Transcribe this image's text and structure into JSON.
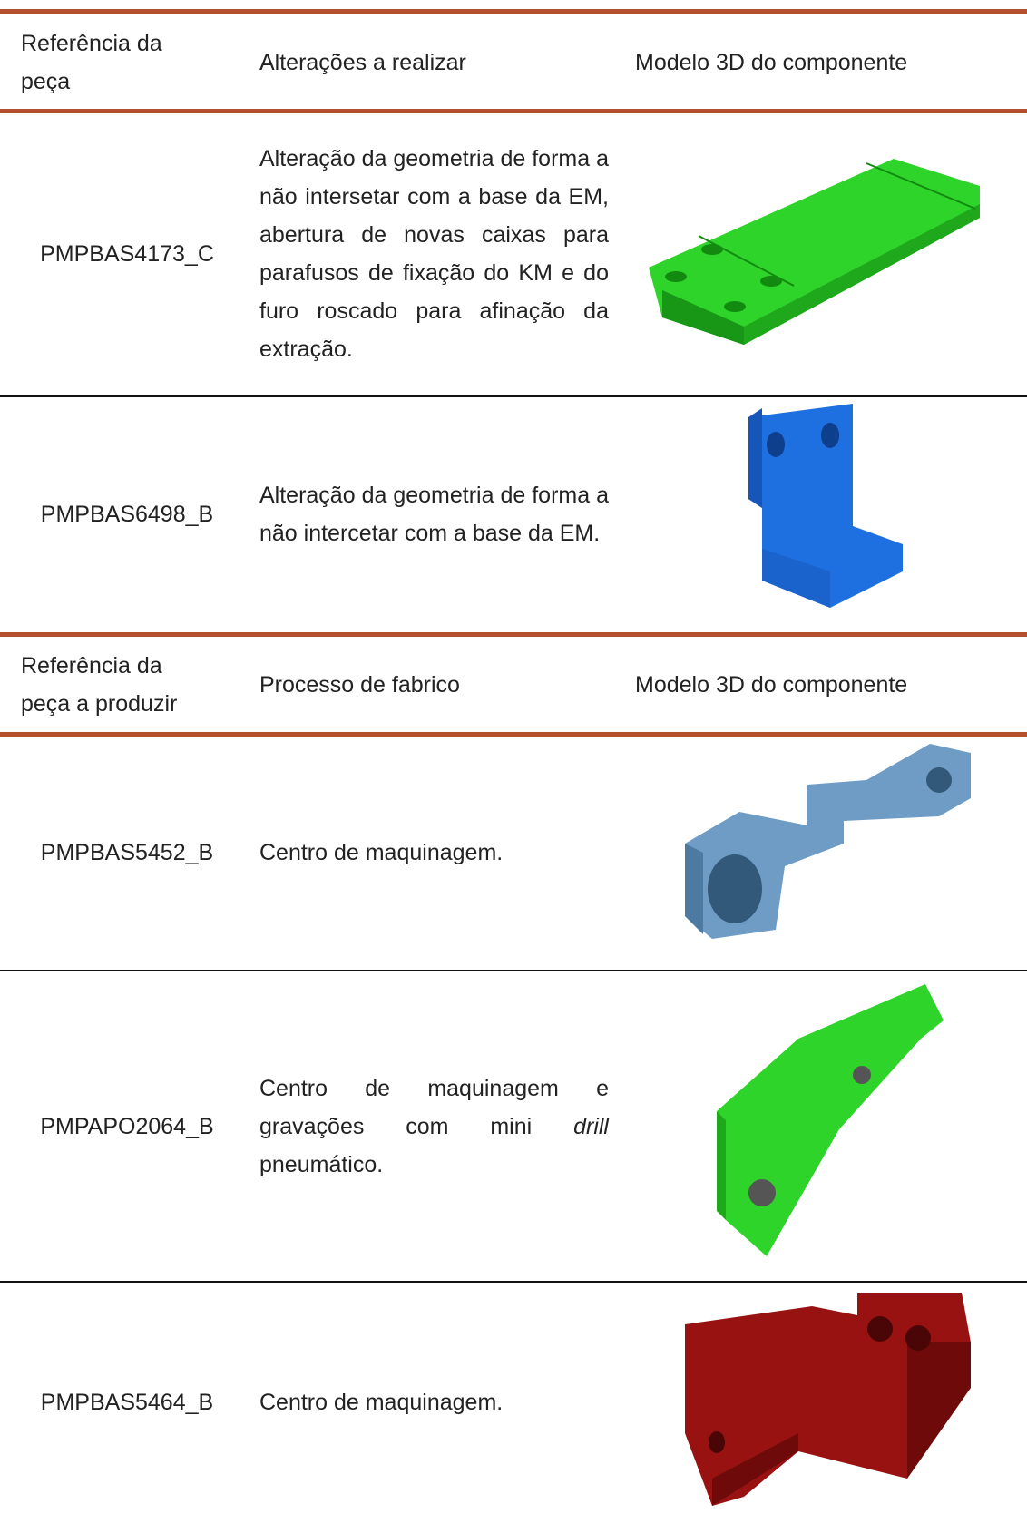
{
  "tables": [
    {
      "header": [
        "Referência da peça",
        "Alterações a realizar",
        "Modelo 3D do componente"
      ],
      "rows": [
        {
          "reference": "PMPBAS4173_C",
          "description": "Alteração da geometria de forma a não intersetar com a base da EM, abertura de novas caixas para parafusos de fixação do KM e do furo roscado para afinação da extração."
        },
        {
          "reference": "PMPBAS6498_B",
          "description": "Alteração da geometria de forma a não intercetar com a base da EM."
        }
      ]
    },
    {
      "header": [
        "Referência da peça a produzir",
        "Processo de fabrico",
        "Modelo 3D do componente"
      ],
      "rows": [
        {
          "reference": "PMPBAS5452_B",
          "description": "Centro de maquinagem."
        },
        {
          "reference": "PMPAPO2064_B",
          "description": [
            "Centro de maquinagem e gravações com mini",
            "drill",
            "pneumático."
          ]
        },
        {
          "reference": "PMPBAS5464_B",
          "description": "Centro de maquinagem."
        }
      ]
    }
  ]
}
